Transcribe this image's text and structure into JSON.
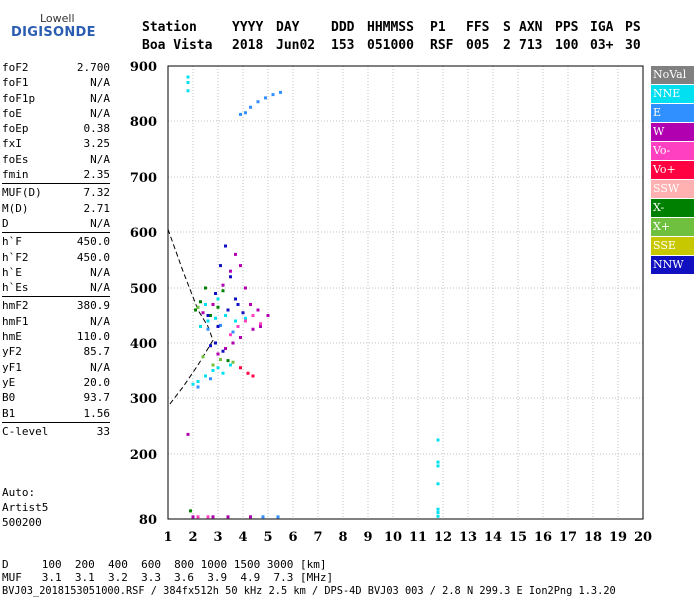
{
  "logo": {
    "top": "Lowell",
    "main": "DIGISONDE"
  },
  "header": {
    "row1": [
      "Station",
      "YYYY",
      "DAY",
      "DDD",
      "HHMMSS",
      "P1",
      "FFS",
      "S",
      "AXN",
      "PPS",
      "IGA",
      "PS"
    ],
    "row2": [
      "Boa Vista",
      "2018",
      "Jun02",
      "153",
      "051000",
      "RSF",
      "005",
      "2",
      "713",
      "100",
      "03+",
      "30"
    ]
  },
  "params": [
    [
      [
        "foF2",
        "2.700"
      ],
      [
        "foF1",
        "N/A"
      ],
      [
        "foF1p",
        "N/A"
      ],
      [
        "foE",
        "N/A"
      ],
      [
        "foEp",
        "0.38"
      ],
      [
        "fxI",
        "3.25"
      ],
      [
        "foEs",
        "N/A"
      ],
      [
        "fmin",
        "2.35"
      ]
    ],
    [
      [
        "MUF(D)",
        "7.32"
      ],
      [
        "M(D)",
        "2.71"
      ],
      [
        "D",
        "N/A"
      ]
    ],
    [
      [
        "h`F",
        "450.0"
      ],
      [
        "h`F2",
        "450.0"
      ],
      [
        "h`E",
        "N/A"
      ],
      [
        "h`Es",
        "N/A"
      ]
    ],
    [
      [
        "hmF2",
        "380.9"
      ],
      [
        "hmF1",
        "N/A"
      ],
      [
        "hmE",
        "110.0"
      ],
      [
        "yF2",
        "85.7"
      ],
      [
        "yF1",
        "N/A"
      ],
      [
        "yE",
        "20.0"
      ],
      [
        "B0",
        "93.7"
      ],
      [
        "B1",
        "1.56"
      ]
    ],
    [
      [
        "C-level",
        "33"
      ]
    ]
  ],
  "auto": {
    "l1": "Auto:",
    "l2": "Artist5",
    "l3": "500200"
  },
  "legend": [
    {
      "label": "NoVal",
      "color": "#808080"
    },
    {
      "label": "NNE",
      "color": "#00e0f0"
    },
    {
      "label": "E",
      "color": "#3090ff"
    },
    {
      "label": "W",
      "color": "#b000b0"
    },
    {
      "label": "Vo-",
      "color": "#ff40c0"
    },
    {
      "label": "Vo+",
      "color": "#ff0040"
    },
    {
      "label": "SSW",
      "color": "#ffb0b0"
    },
    {
      "label": "X-",
      "color": "#008000"
    },
    {
      "label": "X+",
      "color": "#70c040"
    },
    {
      "label": "SSE",
      "color": "#c8c800"
    },
    {
      "label": "NNW",
      "color": "#1010c0"
    }
  ],
  "footer": {
    "d_line": "D     100  200  400  600  800 1000 1500 3000 [km]",
    "muf_line": "MUF   3.1  3.1  3.2  3.3  3.6  3.9  4.9  7.3 [MHz]",
    "info_line": "BVJ03_2018153051000.RSF / 384fx512h 50 kHz 2.5 km / DPS-4D BVJ03 003 / 2.8 N 299.3 E Ion2Png 1.3.20"
  },
  "chart_data": {
    "type": "scatter",
    "title": "",
    "xlabel": "",
    "ylabel": "",
    "xlim": [
      1,
      20
    ],
    "ylim": [
      80,
      900
    ],
    "x_ticks": [
      1,
      2,
      3,
      4,
      5,
      6,
      7,
      8,
      9,
      10,
      11,
      12,
      13,
      14,
      15,
      16,
      17,
      18,
      19,
      20
    ],
    "y_ticks": [
      80,
      200,
      300,
      400,
      500,
      600,
      700,
      800,
      900
    ],
    "grid": true,
    "legend_position": "right",
    "series": [
      {
        "name": "NNE",
        "color": "#00e0f0",
        "points": [
          [
            1.8,
            880
          ],
          [
            1.8,
            870
          ],
          [
            1.8,
            855
          ],
          [
            2.0,
            325
          ],
          [
            2.2,
            330
          ],
          [
            2.5,
            340
          ],
          [
            2.8,
            350
          ],
          [
            3.0,
            355
          ],
          [
            3.2,
            345
          ],
          [
            3.5,
            360
          ],
          [
            2.3,
            430
          ],
          [
            2.6,
            440
          ],
          [
            2.9,
            445
          ],
          [
            3.3,
            450
          ],
          [
            3.7,
            440
          ],
          [
            4.1,
            445
          ],
          [
            2.5,
            470
          ],
          [
            3.0,
            480
          ],
          [
            11.8,
            225
          ],
          [
            11.8,
            185
          ],
          [
            11.8,
            178
          ],
          [
            11.8,
            145
          ],
          [
            11.8,
            98
          ],
          [
            11.8,
            92
          ],
          [
            11.8,
            85
          ]
        ]
      },
      {
        "name": "E",
        "color": "#3090ff",
        "points": [
          [
            3.9,
            812
          ],
          [
            4.1,
            815
          ],
          [
            4.3,
            825
          ],
          [
            4.6,
            835
          ],
          [
            4.9,
            842
          ],
          [
            5.2,
            848
          ],
          [
            5.5,
            852
          ],
          [
            2.6,
            425
          ],
          [
            3.1,
            432
          ],
          [
            3.6,
            420
          ],
          [
            2.2,
            320
          ],
          [
            2.7,
            335
          ],
          [
            4.8,
            84
          ],
          [
            5.4,
            84
          ]
        ]
      },
      {
        "name": "W",
        "color": "#b000b0",
        "points": [
          [
            1.8,
            235
          ],
          [
            2.4,
            455
          ],
          [
            2.8,
            470
          ],
          [
            3.2,
            505
          ],
          [
            3.5,
            530
          ],
          [
            3.7,
            560
          ],
          [
            3.9,
            540
          ],
          [
            4.1,
            500
          ],
          [
            4.3,
            470
          ],
          [
            4.6,
            460
          ],
          [
            5.0,
            450
          ],
          [
            3.3,
            390
          ],
          [
            3.6,
            400
          ],
          [
            3.9,
            410
          ],
          [
            4.4,
            425
          ],
          [
            4.7,
            430
          ],
          [
            3.0,
            380
          ],
          [
            2.0,
            84
          ],
          [
            2.8,
            84
          ],
          [
            3.4,
            84
          ],
          [
            4.3,
            84
          ]
        ]
      },
      {
        "name": "Vo-",
        "color": "#ff40c0",
        "points": [
          [
            3.8,
            430
          ],
          [
            4.1,
            440
          ],
          [
            4.4,
            450
          ],
          [
            4.7,
            435
          ],
          [
            3.5,
            415
          ],
          [
            2.2,
            84
          ],
          [
            2.6,
            84
          ]
        ]
      },
      {
        "name": "Vo+",
        "color": "#ff0040",
        "points": [
          [
            4.2,
            345
          ],
          [
            3.9,
            355
          ],
          [
            4.4,
            340
          ]
        ]
      },
      {
        "name": "X-",
        "color": "#008000",
        "points": [
          [
            1.9,
            95
          ],
          [
            2.1,
            460
          ],
          [
            2.3,
            475
          ],
          [
            2.7,
            450
          ],
          [
            3.0,
            465
          ],
          [
            3.2,
            495
          ],
          [
            2.5,
            500
          ],
          [
            3.4,
            368
          ]
        ]
      },
      {
        "name": "X+",
        "color": "#70c040",
        "points": [
          [
            2.4,
            375
          ],
          [
            2.8,
            360
          ],
          [
            3.1,
            370
          ],
          [
            3.6,
            365
          ],
          [
            2.2,
            465
          ]
        ]
      },
      {
        "name": "NNW",
        "color": "#1010c0",
        "points": [
          [
            2.6,
            450
          ],
          [
            2.9,
            490
          ],
          [
            3.1,
            540
          ],
          [
            3.3,
            575
          ],
          [
            3.5,
            520
          ],
          [
            3.7,
            480
          ],
          [
            3.4,
            460
          ],
          [
            3.0,
            430
          ],
          [
            2.7,
            395
          ],
          [
            2.9,
            400
          ],
          [
            3.2,
            385
          ],
          [
            3.8,
            470
          ],
          [
            4.0,
            455
          ]
        ]
      }
    ],
    "profile_line": [
      [
        1.0,
        605
      ],
      [
        1.6,
        530
      ],
      [
        2.2,
        460
      ],
      [
        2.6,
        430
      ],
      [
        2.8,
        405
      ],
      [
        2.2,
        360
      ],
      [
        1.6,
        320
      ],
      [
        1.0,
        285
      ]
    ]
  }
}
